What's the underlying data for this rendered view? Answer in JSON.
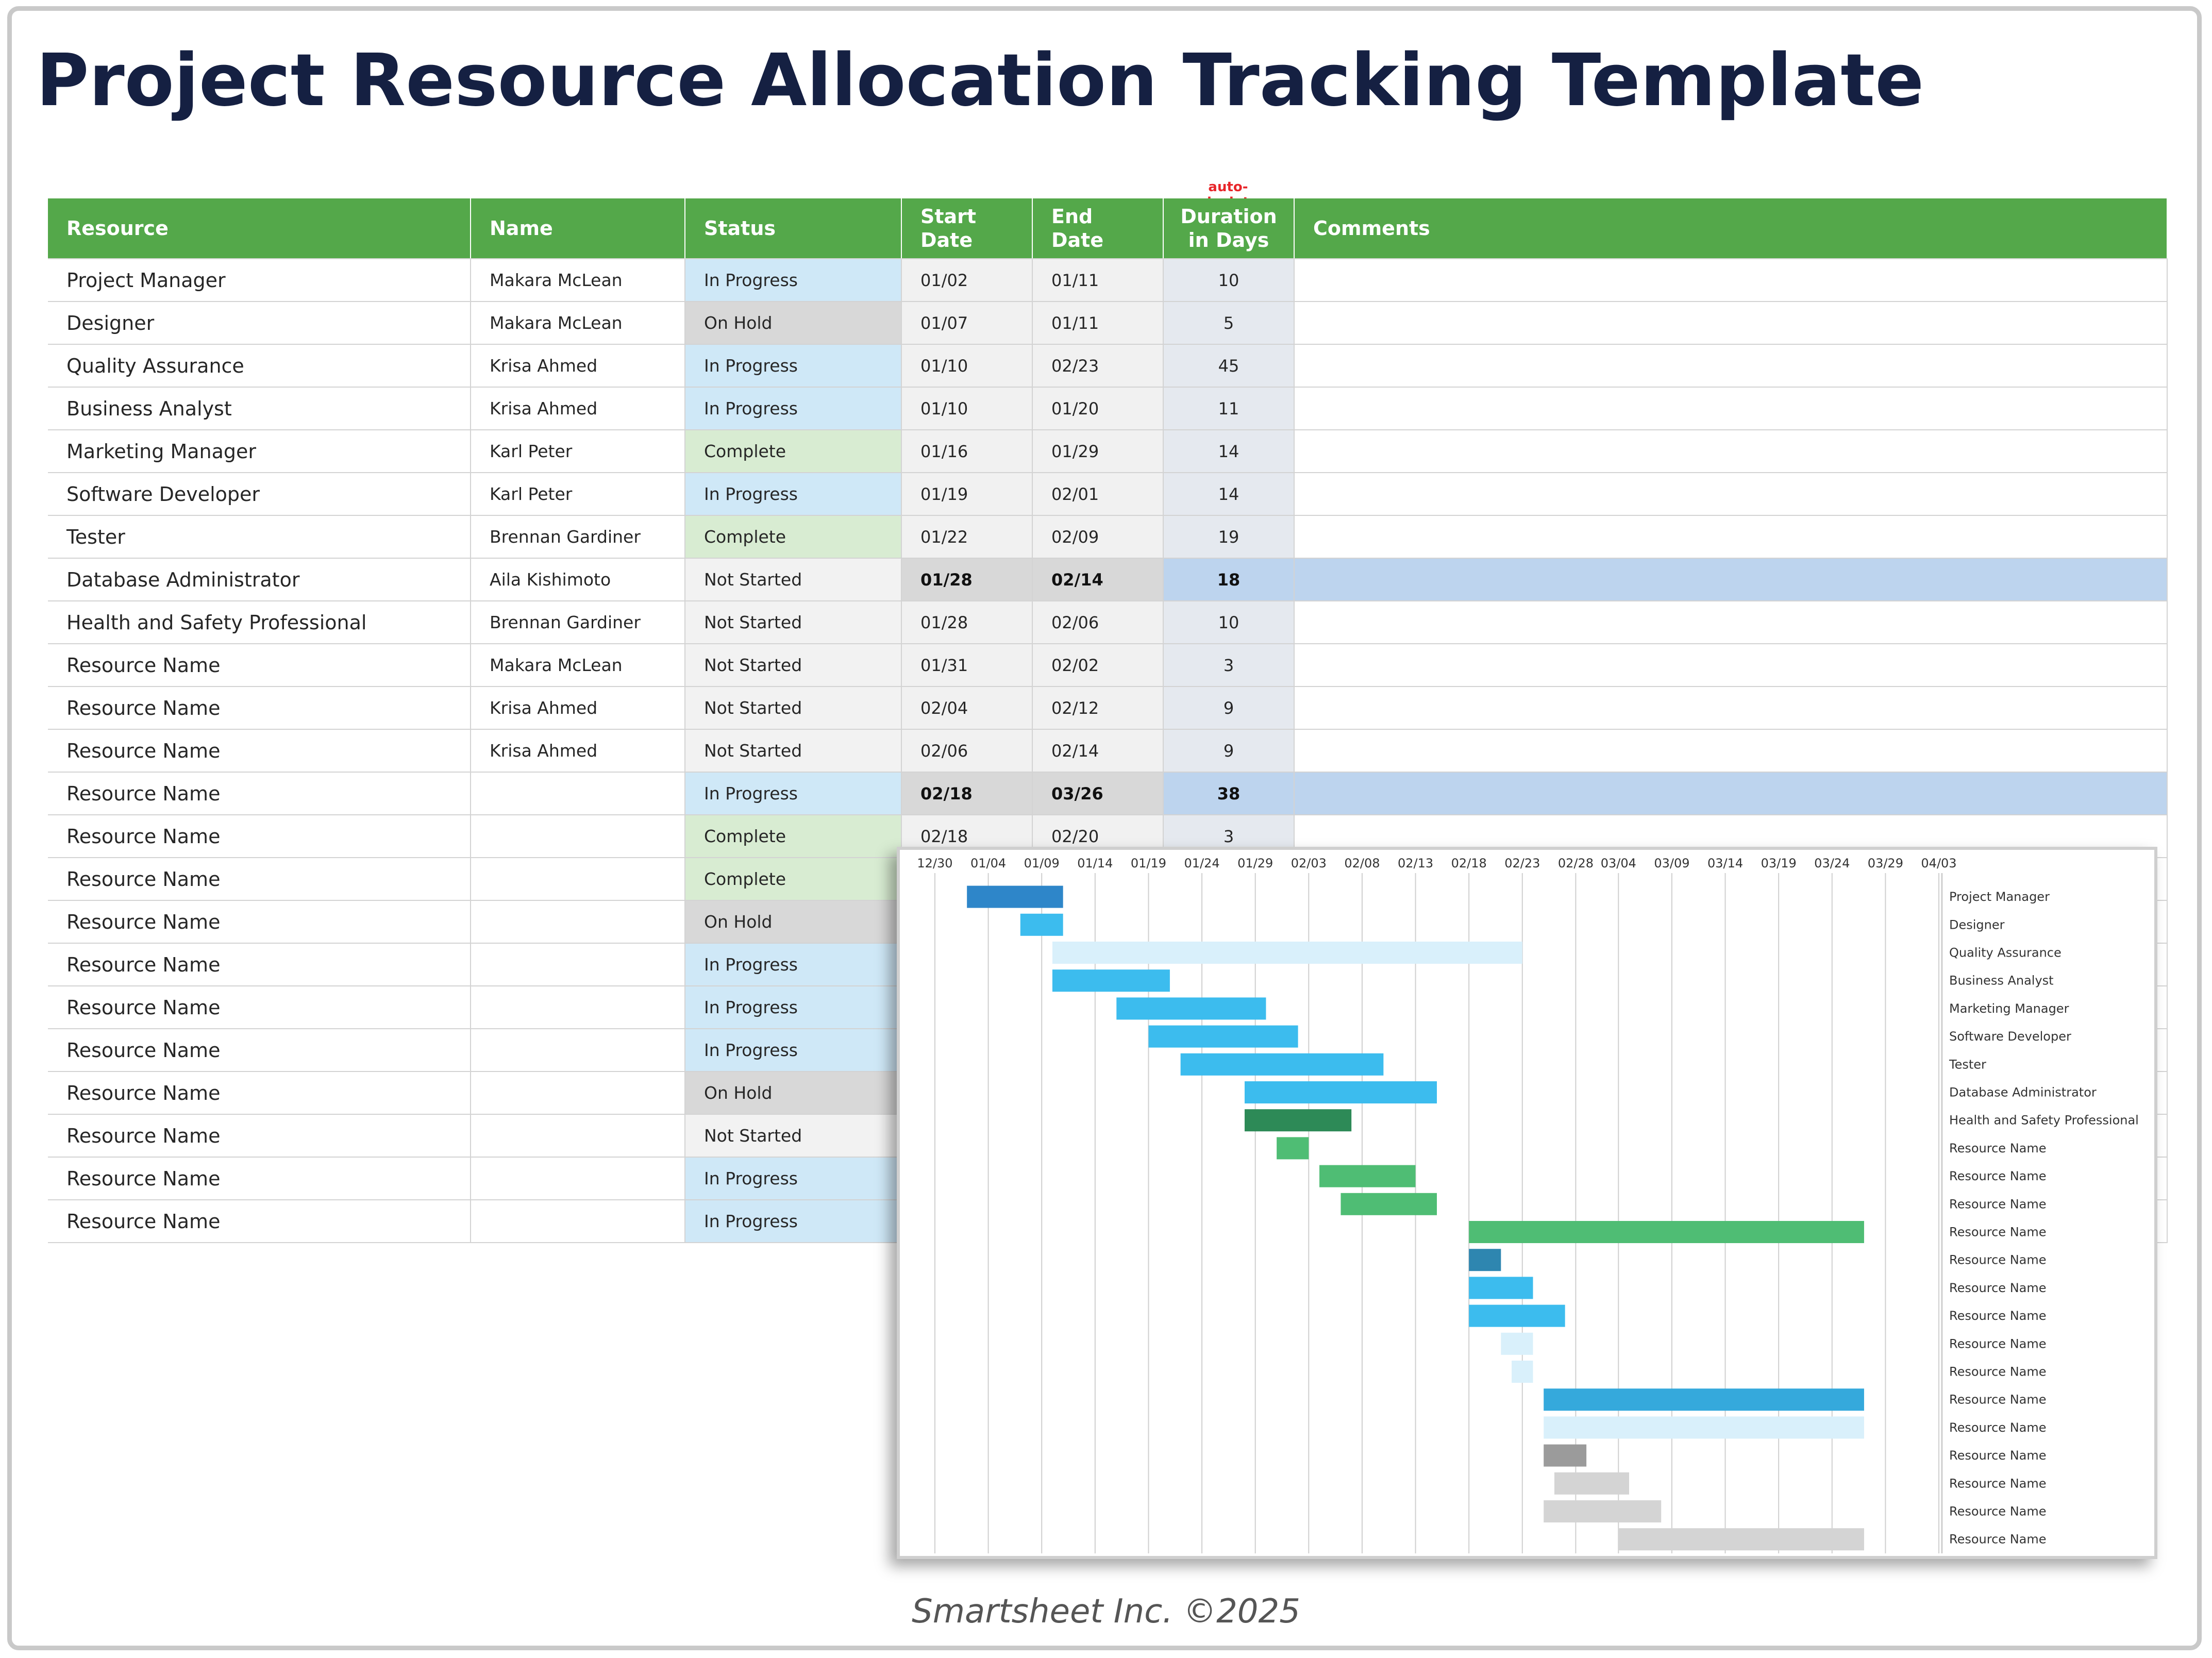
{
  "page": {
    "title": "Project Resource Allocation Tracking Template",
    "auto_note": "auto-calculates",
    "footer": "Smartsheet Inc. ©2025"
  },
  "table": {
    "headers": {
      "resource": "Resource",
      "name": "Name",
      "status": "Status",
      "start": "Start Date",
      "end": "End Date",
      "duration": "Duration in Days",
      "comments": "Comments"
    },
    "rows": [
      {
        "resource": "Project Manager",
        "name": "Makara McLean",
        "status": "In Progress",
        "start": "01/02",
        "end": "01/11",
        "duration": "10",
        "highlight": false
      },
      {
        "resource": "Designer",
        "name": "Makara McLean",
        "status": "On Hold",
        "start": "01/07",
        "end": "01/11",
        "duration": "5",
        "highlight": false
      },
      {
        "resource": "Quality Assurance",
        "name": "Krisa Ahmed",
        "status": "In Progress",
        "start": "01/10",
        "end": "02/23",
        "duration": "45",
        "highlight": false
      },
      {
        "resource": "Business Analyst",
        "name": "Krisa Ahmed",
        "status": "In Progress",
        "start": "01/10",
        "end": "01/20",
        "duration": "11",
        "highlight": false
      },
      {
        "resource": "Marketing Manager",
        "name": "Karl Peter",
        "status": "Complete",
        "start": "01/16",
        "end": "01/29",
        "duration": "14",
        "highlight": false
      },
      {
        "resource": "Software Developer",
        "name": "Karl Peter",
        "status": "In Progress",
        "start": "01/19",
        "end": "02/01",
        "duration": "14",
        "highlight": false
      },
      {
        "resource": "Tester",
        "name": "Brennan Gardiner",
        "status": "Complete",
        "start": "01/22",
        "end": "02/09",
        "duration": "19",
        "highlight": false
      },
      {
        "resource": "Database Administrator",
        "name": "Aila Kishimoto",
        "status": "Not Started",
        "start": "01/28",
        "end": "02/14",
        "duration": "18",
        "highlight": true
      },
      {
        "resource": "Health and Safety Professional",
        "name": "Brennan Gardiner",
        "status": "Not Started",
        "start": "01/28",
        "end": "02/06",
        "duration": "10",
        "highlight": false
      },
      {
        "resource": "Resource Name",
        "name": "Makara McLean",
        "status": "Not Started",
        "start": "01/31",
        "end": "02/02",
        "duration": "3",
        "highlight": false
      },
      {
        "resource": "Resource Name",
        "name": "Krisa Ahmed",
        "status": "Not Started",
        "start": "02/04",
        "end": "02/12",
        "duration": "9",
        "highlight": false
      },
      {
        "resource": "Resource Name",
        "name": "Krisa Ahmed",
        "status": "Not Started",
        "start": "02/06",
        "end": "02/14",
        "duration": "9",
        "highlight": false
      },
      {
        "resource": "Resource Name",
        "name": "",
        "status": "In Progress",
        "start": "02/18",
        "end": "03/26",
        "duration": "38",
        "highlight": true
      },
      {
        "resource": "Resource Name",
        "name": "",
        "status": "Complete",
        "start": "02/18",
        "end": "02/20",
        "duration": "3",
        "highlight": false
      },
      {
        "resource": "Resource Name",
        "name": "",
        "status": "Complete",
        "start": "",
        "end": "",
        "duration": "",
        "highlight": false
      },
      {
        "resource": "Resource Name",
        "name": "",
        "status": "On Hold",
        "start": "",
        "end": "",
        "duration": "",
        "highlight": false
      },
      {
        "resource": "Resource Name",
        "name": "",
        "status": "In Progress",
        "start": "",
        "end": "",
        "duration": "",
        "highlight": false
      },
      {
        "resource": "Resource Name",
        "name": "",
        "status": "In Progress",
        "start": "",
        "end": "",
        "duration": "",
        "highlight": false
      },
      {
        "resource": "Resource Name",
        "name": "",
        "status": "In Progress",
        "start": "",
        "end": "",
        "duration": "",
        "highlight": false
      },
      {
        "resource": "Resource Name",
        "name": "",
        "status": "On Hold",
        "start": "",
        "end": "",
        "duration": "",
        "highlight": false
      },
      {
        "resource": "Resource Name",
        "name": "",
        "status": "Not Started",
        "start": "",
        "end": "",
        "duration": "",
        "highlight": false
      },
      {
        "resource": "Resource Name",
        "name": "",
        "status": "In Progress",
        "start": "",
        "end": "",
        "duration": "",
        "highlight": false
      },
      {
        "resource": "Resource Name",
        "name": "",
        "status": "In Progress",
        "start": "",
        "end": "",
        "duration": "",
        "highlight": false
      }
    ],
    "status_colors": {
      "In Progress": "#cfe8f7",
      "On Hold": "#d8d8d8",
      "Complete": "#d8ecd2",
      "Not Started": "#f2f2f2"
    },
    "header_color": "#54a84a"
  },
  "chart_data": {
    "type": "bar",
    "orientation": "horizontal-gantt",
    "x_ticks": [
      "12/30",
      "01/04",
      "01/09",
      "01/14",
      "01/19",
      "01/24",
      "01/29",
      "02/03",
      "02/08",
      "02/13",
      "02/18",
      "02/23",
      "02/28",
      "03/04",
      "03/09",
      "03/14",
      "03/19",
      "03/24",
      "03/29",
      "04/03"
    ],
    "x_range": [
      "12/30",
      "04/03"
    ],
    "grid": "vertical",
    "label_position": "right",
    "tasks": [
      {
        "label": "Project Manager",
        "start": "01/02",
        "end": "01/11",
        "color": "#2e86c9"
      },
      {
        "label": "Designer",
        "start": "01/07",
        "end": "01/11",
        "color": "#3cbcee"
      },
      {
        "label": "Quality Assurance",
        "start": "01/10",
        "end": "02/23",
        "color": "#d9f0fb"
      },
      {
        "label": "Business Analyst",
        "start": "01/10",
        "end": "01/21",
        "color": "#3cbcee"
      },
      {
        "label": "Marketing Manager",
        "start": "01/16",
        "end": "01/30",
        "color": "#3cbcee"
      },
      {
        "label": "Software Developer",
        "start": "01/19",
        "end": "02/02",
        "color": "#3cbcee"
      },
      {
        "label": "Tester",
        "start": "01/22",
        "end": "02/10",
        "color": "#3cbcee"
      },
      {
        "label": "Database Administrator",
        "start": "01/28",
        "end": "02/15",
        "color": "#3cbcee"
      },
      {
        "label": "Health and Safety Professional",
        "start": "01/28",
        "end": "02/07",
        "color": "#2d8a57"
      },
      {
        "label": "Resource Name",
        "start": "01/31",
        "end": "02/03",
        "color": "#4fbd74"
      },
      {
        "label": "Resource Name",
        "start": "02/04",
        "end": "02/13",
        "color": "#4fbd74"
      },
      {
        "label": "Resource Name",
        "start": "02/06",
        "end": "02/15",
        "color": "#4fbd74"
      },
      {
        "label": "Resource Name",
        "start": "02/18",
        "end": "03/27",
        "color": "#4fbd74"
      },
      {
        "label": "Resource Name",
        "start": "02/18",
        "end": "02/21",
        "color": "#2e86b0"
      },
      {
        "label": "Resource Name",
        "start": "02/18",
        "end": "02/24",
        "color": "#3cbcee"
      },
      {
        "label": "Resource Name",
        "start": "02/18",
        "end": "02/27",
        "color": "#3cbcee"
      },
      {
        "label": "Resource Name",
        "start": "02/21",
        "end": "02/24",
        "color": "#d9f0fb"
      },
      {
        "label": "Resource Name",
        "start": "02/22",
        "end": "02/24",
        "color": "#d9f0fb"
      },
      {
        "label": "Resource Name",
        "start": "02/25",
        "end": "03/27",
        "color": "#35a9dc"
      },
      {
        "label": "Resource Name",
        "start": "02/25",
        "end": "03/27",
        "color": "#d9f0fb"
      },
      {
        "label": "Resource Name",
        "start": "02/25",
        "end": "03/01",
        "color": "#9b9b9b"
      },
      {
        "label": "Resource Name",
        "start": "02/26",
        "end": "03/05",
        "color": "#d4d4d4"
      },
      {
        "label": "Resource Name",
        "start": "02/25",
        "end": "03/08",
        "color": "#d4d4d4"
      },
      {
        "label": "Resource Name",
        "start": "03/04",
        "end": "03/27",
        "color": "#d4d4d4"
      }
    ]
  }
}
